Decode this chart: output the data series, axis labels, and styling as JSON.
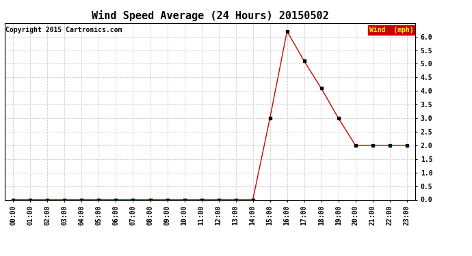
{
  "title": "Wind Speed Average (24 Hours) 20150502",
  "copyright": "Copyright 2015 Cartronics.com",
  "legend_label": "Wind  (mph)",
  "legend_bg": "#cc0000",
  "legend_text_color": "#ffff00",
  "x_labels": [
    "00:00",
    "01:00",
    "02:00",
    "03:00",
    "04:00",
    "05:00",
    "06:00",
    "07:00",
    "08:00",
    "09:00",
    "10:00",
    "11:00",
    "12:00",
    "13:00",
    "14:00",
    "15:00",
    "16:00",
    "17:00",
    "18:00",
    "19:00",
    "20:00",
    "21:00",
    "22:00",
    "23:00"
  ],
  "y_values": [
    0.0,
    0.0,
    0.0,
    0.0,
    0.0,
    0.0,
    0.0,
    0.0,
    0.0,
    0.0,
    0.0,
    0.0,
    0.0,
    0.0,
    0.0,
    3.0,
    6.2,
    5.1,
    4.1,
    3.0,
    2.0,
    2.0,
    2.0,
    2.0
  ],
  "line_color": "#cc0000",
  "marker_color": "#000000",
  "grid_color": "#cccccc",
  "bg_color": "#ffffff",
  "ylim": [
    0.0,
    6.5
  ],
  "yticks": [
    0.0,
    0.5,
    1.0,
    1.5,
    2.0,
    2.5,
    3.0,
    3.5,
    4.0,
    4.5,
    5.0,
    5.5,
    6.0
  ],
  "title_fontsize": 11,
  "tick_fontsize": 7,
  "copyright_fontsize": 7
}
